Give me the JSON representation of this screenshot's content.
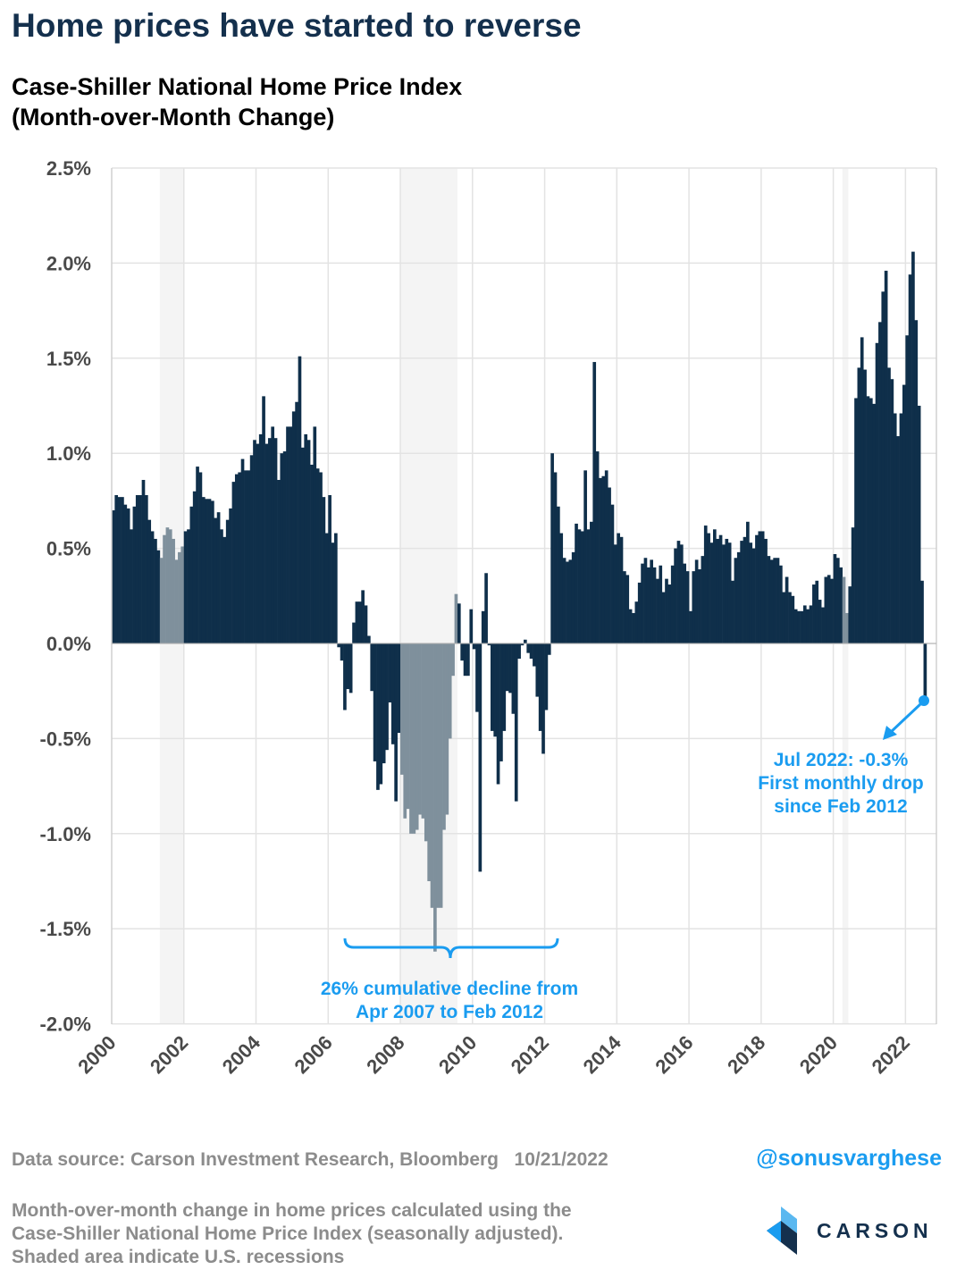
{
  "header": {
    "title": "Home prices have started to reverse",
    "subtitle_line1": "Case-Shiller National Home Price Index",
    "subtitle_line2": "(Month-over-Month Change)"
  },
  "chart_data": {
    "type": "bar",
    "title": "Case-Shiller National Home Price Index (Month-over-Month Change)",
    "xlabel": "",
    "ylabel": "",
    "start_month": "2000-01",
    "frequency": "monthly",
    "ylim": [
      -2.0,
      2.5
    ],
    "y_ticks": [
      "2.5%",
      "2.0%",
      "1.5%",
      "1.0%",
      "0.5%",
      "0.0%",
      "-0.5%",
      "-1.0%",
      "-1.5%",
      "-2.0%"
    ],
    "y_tick_values": [
      2.5,
      2.0,
      1.5,
      1.0,
      0.5,
      0.0,
      -0.5,
      -1.0,
      -1.5,
      -2.0
    ],
    "x_ticks": [
      "2000",
      "2002",
      "2004",
      "2006",
      "2008",
      "2010",
      "2012",
      "2014",
      "2016",
      "2018",
      "2020",
      "2022"
    ],
    "grid": true,
    "bar_color": "#0f2f4a",
    "recession_bar_color": "#7f909c",
    "recession_shade_color": "#f4f4f4",
    "recessions": [
      [
        "2001-05",
        "2001-12"
      ],
      [
        "2008-01",
        "2009-07"
      ],
      [
        "2020-04",
        "2020-05"
      ]
    ],
    "values_by_year": {
      "2000": [
        0.7,
        0.78,
        0.77,
        0.77,
        0.73,
        0.71,
        0.6,
        0.72,
        0.78,
        0.78,
        0.86,
        0.78
      ],
      "2001": [
        0.65,
        0.59,
        0.55,
        0.49,
        0.45,
        0.57,
        0.61,
        0.6,
        0.55,
        0.44,
        0.48,
        0.51
      ],
      "2002": [
        0.59,
        0.6,
        0.72,
        0.8,
        0.93,
        0.9,
        0.77,
        0.76,
        0.76,
        0.75,
        0.66,
        0.69
      ],
      "2003": [
        0.6,
        0.56,
        0.65,
        0.71,
        0.85,
        0.89,
        0.9,
        0.97,
        0.91,
        0.91,
        0.99,
        1.07
      ],
      "2004": [
        1.05,
        1.1,
        1.3,
        1.05,
        1.08,
        1.14,
        1.08,
        0.86,
        1.0,
        1.01,
        1.14,
        1.14
      ],
      "2005": [
        1.22,
        1.27,
        1.51,
        1.03,
        1.1,
        1.07,
        0.94,
        1.14,
        0.92,
        0.9,
        0.77,
        0.58
      ],
      "2006": [
        0.78,
        0.53,
        0.58,
        -0.02,
        -0.09,
        -0.35,
        -0.24,
        -0.26,
        0.11,
        0.22,
        0.22,
        0.28
      ],
      "2007": [
        0.2,
        0.04,
        -0.25,
        -0.62,
        -0.77,
        -0.74,
        -0.63,
        -0.56,
        -0.31,
        -0.53,
        -0.83,
        -0.47
      ],
      "2008": [
        -0.69,
        -0.92,
        -0.87,
        -1.0,
        -1.0,
        -0.98,
        -0.9,
        -0.92,
        -1.04,
        -1.25,
        -1.39,
        -1.62
      ],
      "2009": [
        -1.39,
        -1.39,
        -0.98,
        -0.9,
        -0.5,
        -0.17,
        0.26,
        0.21,
        -0.09,
        -0.17,
        -0.17,
        0.18
      ],
      "2010": [
        -0.03,
        -0.36,
        -1.2,
        0.17,
        0.37,
        -0.01,
        -0.46,
        -0.49,
        -0.74,
        -0.62,
        -0.46,
        -0.25
      ],
      "2011": [
        -0.26,
        -0.37,
        -0.83,
        -0.08,
        -0.01,
        0.02,
        -0.05,
        -0.08,
        -0.12,
        -0.28,
        -0.46,
        -0.58
      ],
      "2012": [
        -0.35,
        -0.06,
        1.0,
        0.9,
        0.72,
        0.58,
        0.45,
        0.43,
        0.44,
        0.48,
        0.63,
        0.6
      ],
      "2013": [
        0.59,
        0.91,
        0.6,
        0.64,
        1.48,
        1.01,
        0.87,
        0.88,
        0.91,
        0.82,
        0.73,
        0.52
      ],
      "2014": [
        0.58,
        0.56,
        0.38,
        0.36,
        0.18,
        0.16,
        0.22,
        0.32,
        0.42,
        0.45,
        0.4,
        0.44
      ],
      "2015": [
        0.4,
        0.34,
        0.41,
        0.27,
        0.34,
        0.31,
        0.41,
        0.5,
        0.54,
        0.52,
        0.42,
        0.38
      ],
      "2016": [
        0.17,
        0.38,
        0.44,
        0.39,
        0.46,
        0.62,
        0.58,
        0.53,
        0.6,
        0.55,
        0.57,
        0.52
      ],
      "2017": [
        0.55,
        0.53,
        0.33,
        0.45,
        0.48,
        0.54,
        0.56,
        0.64,
        0.53,
        0.5,
        0.57,
        0.59
      ],
      "2018": [
        0.59,
        0.55,
        0.46,
        0.44,
        0.45,
        0.45,
        0.41,
        0.27,
        0.35,
        0.27,
        0.25,
        0.18
      ],
      "2019": [
        0.17,
        0.17,
        0.2,
        0.18,
        0.2,
        0.31,
        0.33,
        0.23,
        0.19,
        0.35,
        0.36,
        0.34
      ],
      "2020": [
        0.47,
        0.45,
        0.4,
        0.35,
        0.16,
        0.3,
        0.61,
        1.29,
        1.45,
        1.61,
        1.44,
        1.3
      ],
      "2021": [
        1.29,
        1.26,
        1.58,
        1.69,
        1.85,
        1.96,
        1.45,
        1.39,
        1.21,
        1.09,
        1.21,
        1.36
      ],
      "2022": [
        1.62,
        1.94,
        2.06,
        1.7,
        1.25,
        0.33,
        -0.3
      ]
    },
    "annotations": {
      "accent_color": "#1a9cf0",
      "decline_line1": "26% cumulative decline from",
      "decline_line2": "Apr 2007 to Feb 2012",
      "latest_line1": "Jul 2022: -0.3%",
      "latest_line2": "First monthly drop",
      "latest_line3": "since Feb 2012"
    }
  },
  "footer": {
    "source": "Data source: Carson Investment Research, Bloomberg",
    "date": "10/21/2022",
    "handle": "@sonusvarghese",
    "note_line1": "Month-over-month change in home prices calculated using the",
    "note_line2": "Case-Shiller National Home Price Index (seasonally adjusted).",
    "note_line3": "Shaded area indicate U.S. recessions",
    "logo_text": "CARSON"
  }
}
